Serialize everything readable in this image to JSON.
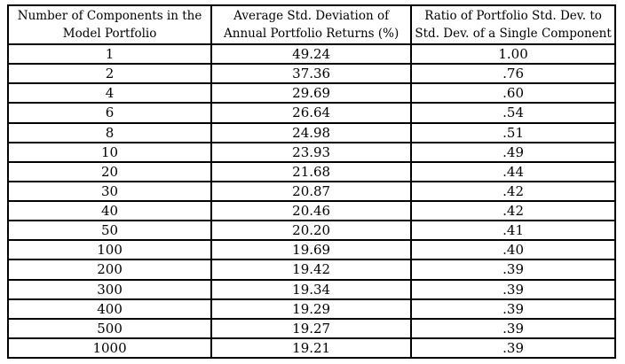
{
  "table": {
    "headers": [
      {
        "line1": "Number of Components in the",
        "line2": "Model Portfolio"
      },
      {
        "line1": "Average Std. Deviation of",
        "line2": "Annual Portfolio Returns (%)"
      },
      {
        "line1": "Ratio of Portfolio Std. Dev. to",
        "line2": "Std. Dev. of a Single Component"
      }
    ],
    "rows": [
      [
        "1",
        "49.24",
        "1.00"
      ],
      [
        "2",
        "37.36",
        ".76"
      ],
      [
        "4",
        "29.69",
        ".60"
      ],
      [
        "6",
        "26.64",
        ".54"
      ],
      [
        "8",
        "24.98",
        ".51"
      ],
      [
        "10",
        "23.93",
        ".49"
      ],
      [
        "20",
        "21.68",
        ".44"
      ],
      [
        "30",
        "20.87",
        ".42"
      ],
      [
        "40",
        "20.46",
        ".42"
      ],
      [
        "50",
        "20.20",
        ".41"
      ],
      [
        "100",
        "19.69",
        ".40"
      ],
      [
        "200",
        "19.42",
        ".39"
      ],
      [
        "300",
        "19.34",
        ".39"
      ],
      [
        "400",
        "19.29",
        ".39"
      ],
      [
        "500",
        "19.27",
        ".39"
      ],
      [
        "1000",
        "19.21",
        ".39"
      ]
    ]
  },
  "chart_data": {
    "type": "table",
    "title": "",
    "columns": [
      "Number of Components in the Model Portfolio",
      "Average Std. Deviation of Annual Portfolio Returns (%)",
      "Ratio of Portfolio Std. Dev. to Std. Dev. of a Single Component"
    ],
    "x": [
      1,
      2,
      4,
      6,
      8,
      10,
      20,
      30,
      40,
      50,
      100,
      200,
      300,
      400,
      500,
      1000
    ],
    "series": [
      {
        "name": "Average Std. Deviation of Annual Portfolio Returns (%)",
        "values": [
          49.24,
          37.36,
          29.69,
          26.64,
          24.98,
          23.93,
          21.68,
          20.87,
          20.46,
          20.2,
          19.69,
          19.42,
          19.34,
          19.29,
          19.27,
          19.21
        ]
      },
      {
        "name": "Ratio of Portfolio Std. Dev. to Std. Dev. of a Single Component",
        "values": [
          1.0,
          0.76,
          0.6,
          0.54,
          0.51,
          0.49,
          0.44,
          0.42,
          0.42,
          0.41,
          0.4,
          0.39,
          0.39,
          0.39,
          0.39,
          0.39
        ]
      }
    ],
    "colors": {
      "border": "#000000",
      "text": "#000000",
      "background": "#ffffff"
    }
  }
}
